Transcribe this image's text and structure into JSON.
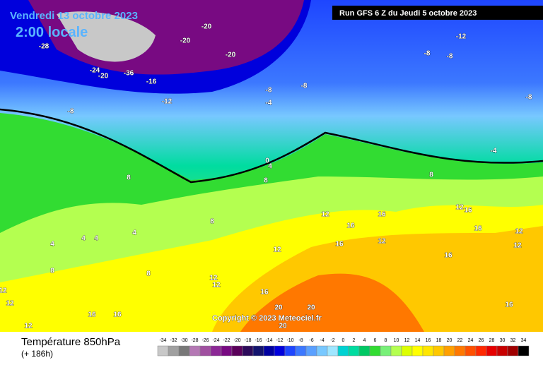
{
  "header": {
    "date": "Vendredi 13 octobre 2023",
    "time": "2:00 locale",
    "run": "Run GFS 6 Z du Jeudi 5 octobre 2023"
  },
  "footer": {
    "title": "Température 850hPa",
    "lead": "(+ 186h)",
    "copyright": "Copyright © 2023 Meteociel.fr"
  },
  "scale": {
    "ticks": [
      -34,
      -32,
      -30,
      -28,
      -26,
      -24,
      -22,
      -20,
      -18,
      -16,
      -14,
      -12,
      -10,
      -8,
      -6,
      -4,
      -2,
      0,
      2,
      4,
      6,
      8,
      10,
      12,
      14,
      16,
      18,
      20,
      22,
      24,
      26,
      28,
      30,
      32,
      34
    ],
    "colors": [
      "#c8c8c8",
      "#a0a0a0",
      "#787878",
      "#b478b4",
      "#a050a0",
      "#8c2896",
      "#780a82",
      "#5a005a",
      "#2d0a5a",
      "#14146e",
      "#0000a0",
      "#0000dc",
      "#1e46ff",
      "#3c78ff",
      "#5aa0ff",
      "#78c8ff",
      "#a0e6ff",
      "#00d2d2",
      "#00dca0",
      "#00c864",
      "#32dc32",
      "#78f078",
      "#b4ff50",
      "#dcff00",
      "#ffff00",
      "#ffe600",
      "#ffc800",
      "#ffa000",
      "#ff7800",
      "#ff5000",
      "#ff2800",
      "#e60000",
      "#c80000",
      "#a00000",
      "#000000"
    ]
  },
  "contour_labels": [
    -20,
    -20,
    -28,
    -24,
    -20,
    -36,
    -16,
    -20,
    -12,
    -8,
    -8,
    -4,
    -8,
    -12,
    -8,
    -8,
    -8,
    -4,
    0,
    4,
    8,
    8,
    8,
    8,
    4,
    4,
    4,
    4,
    8,
    12,
    12,
    16,
    12,
    12,
    16,
    16,
    12,
    16,
    16,
    12,
    16,
    12,
    12,
    16,
    16,
    20,
    20,
    20,
    12,
    12,
    16,
    16,
    12,
    8
  ]
}
